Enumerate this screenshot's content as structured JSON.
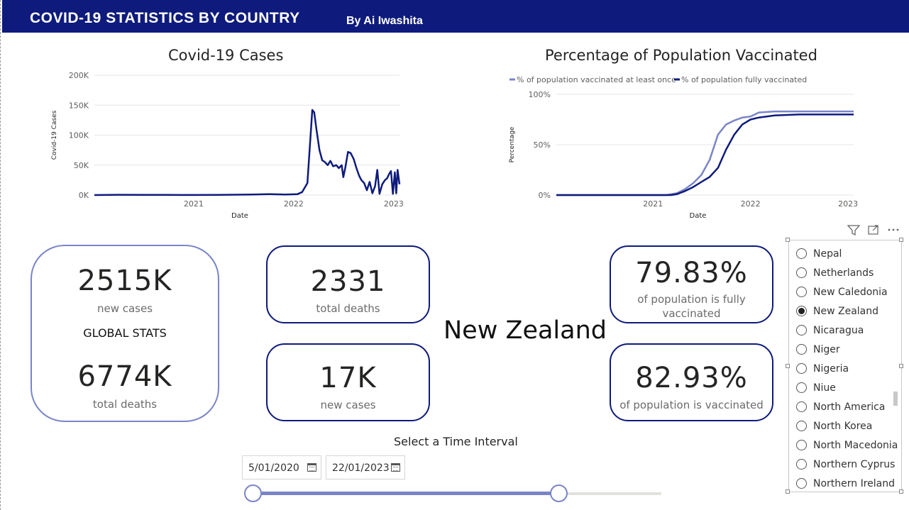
{
  "header": {
    "title": "COVID-19 STATISTICS BY COUNTRY",
    "author": "By Ai Iwashita",
    "bg_color": "#0e1b7c"
  },
  "cases_chart": {
    "title": "Covid-19 Cases",
    "chart_data": {
      "type": "line",
      "xlabel": "Date",
      "ylabel": "Covid-19 Cases",
      "yticks": [
        "0K",
        "50K",
        "100K",
        "150K",
        "200K"
      ],
      "xticks": [
        "2021",
        "2022",
        "2023"
      ],
      "ylim": [
        0,
        200000
      ],
      "x_range": [
        "2020-01-05",
        "2023-01-22"
      ],
      "grid": true,
      "color": "#0e1b7c",
      "series": [
        {
          "x": [
            "2020-01-05",
            "2020-04-01",
            "2020-07-01",
            "2020-10-01",
            "2021-01-01",
            "2021-04-01",
            "2021-08-01",
            "2021-10-01",
            "2021-12-01",
            "2022-01-15",
            "2022-02-01",
            "2022-02-20",
            "2022-03-10",
            "2022-03-17",
            "2022-03-25",
            "2022-04-05",
            "2022-04-15",
            "2022-04-25",
            "2022-05-05",
            "2022-05-15",
            "2022-05-25",
            "2022-06-05",
            "2022-06-15",
            "2022-06-25",
            "2022-07-01",
            "2022-07-08",
            "2022-07-18",
            "2022-07-28",
            "2022-08-08",
            "2022-08-18",
            "2022-08-28",
            "2022-09-05",
            "2022-09-15",
            "2022-09-25",
            "2022-10-05",
            "2022-10-15",
            "2022-10-25",
            "2022-11-02",
            "2022-11-10",
            "2022-11-20",
            "2022-11-30",
            "2022-12-08",
            "2022-12-15",
            "2022-12-22",
            "2022-12-29",
            "2023-01-05",
            "2023-01-10",
            "2023-01-15",
            "2023-01-22"
          ],
          "values": [
            0,
            500,
            300,
            200,
            100,
            300,
            800,
            1500,
            1000,
            1500,
            5000,
            20000,
            142000,
            138000,
            110000,
            75000,
            58000,
            55000,
            50000,
            57000,
            48000,
            50000,
            45000,
            50000,
            30000,
            45000,
            72000,
            70000,
            60000,
            45000,
            32000,
            25000,
            20000,
            8000,
            22000,
            3000,
            15000,
            42000,
            2000,
            18000,
            25000,
            28000,
            35000,
            40000,
            2000,
            38000,
            3000,
            42000,
            18000
          ]
        }
      ]
    }
  },
  "vacc_chart": {
    "title": "Percentage of Population Vaccinated",
    "chart_data": {
      "type": "line",
      "xlabel": "Date",
      "ylabel": "Percentage",
      "yticks": [
        "0%",
        "50%",
        "100%"
      ],
      "xticks": [
        "2021",
        "2022",
        "2023"
      ],
      "ylim": [
        0,
        100
      ],
      "x_range": [
        "2020-01-05",
        "2023-01-22"
      ],
      "legend_position": "top",
      "grid": true,
      "series": [
        {
          "name": "% of population vaccinated at least once",
          "color": "#7a85c8",
          "x": [
            "2020-01-05",
            "2021-02-20",
            "2021-04-01",
            "2021-05-01",
            "2021-06-01",
            "2021-07-01",
            "2021-08-01",
            "2021-09-01",
            "2021-10-01",
            "2021-11-01",
            "2021-12-01",
            "2022-01-01",
            "2022-02-01",
            "2022-04-01",
            "2022-07-01",
            "2023-01-22"
          ],
          "values": [
            0,
            0,
            2,
            6,
            12,
            20,
            35,
            60,
            70,
            74,
            77,
            78,
            82,
            83,
            83,
            83
          ]
        },
        {
          "name": "% of population fully vaccinated",
          "color": "#0e1b7c",
          "x": [
            "2020-01-05",
            "2021-03-10",
            "2021-04-01",
            "2021-05-01",
            "2021-06-01",
            "2021-07-01",
            "2021-08-01",
            "2021-09-01",
            "2021-10-01",
            "2021-11-01",
            "2021-12-01",
            "2022-01-01",
            "2022-02-01",
            "2022-04-01",
            "2022-07-01",
            "2023-01-22"
          ],
          "values": [
            0,
            0,
            1,
            4,
            8,
            13,
            18,
            27,
            45,
            60,
            70,
            75,
            77,
            79,
            80,
            80
          ]
        }
      ]
    }
  },
  "global_card": {
    "cases_value": "2515K",
    "cases_label": "new cases",
    "heading": "GLOBAL STATS",
    "deaths_value": "6774K",
    "deaths_label": "total deaths"
  },
  "country_cards": {
    "total_deaths_value": "2331",
    "total_deaths_label": "total deaths",
    "new_cases_value": "17K",
    "new_cases_label": "new cases",
    "fully_vacc_value": "79.83%",
    "fully_vacc_label_1": "of population is fully",
    "fully_vacc_label_2": "vaccinated",
    "vacc_value": "82.93%",
    "vacc_label": "of population is vaccinated"
  },
  "country_name": "New Zealand",
  "slicer": {
    "selected": "New Zealand",
    "items": [
      "Nepal",
      "Netherlands",
      "New Caledonia",
      "New Zealand",
      "Nicaragua",
      "Niger",
      "Nigeria",
      "Niue",
      "North America",
      "North Korea",
      "North Macedonia",
      "Northern Cyprus",
      "Northern Ireland"
    ],
    "toolbar_icons": [
      "filter-icon",
      "focus-mode-icon",
      "more-options-icon"
    ]
  },
  "interval": {
    "label": "Select a Time Interval",
    "start_date": "5/01/2020",
    "end_date": "22/01/2023",
    "selected_fraction_end": 0.75,
    "accent_color": "#7a85c8"
  }
}
